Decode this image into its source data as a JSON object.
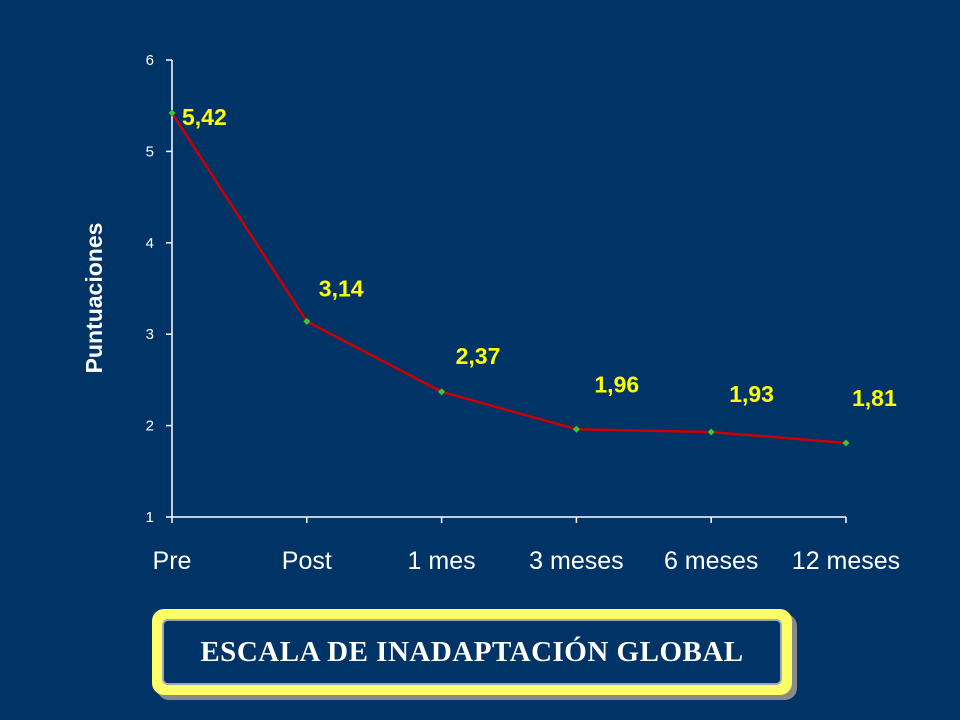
{
  "colors": {
    "background": "#003366",
    "line": "#cc0000",
    "marker": "#33cc33",
    "data_label": "#ffff00",
    "axis": "#ffffff",
    "title_frame": "#ffff66"
  },
  "chart_data": {
    "type": "line",
    "title": "ESCALA DE INADAPTACIÓN GLOBAL",
    "xlabel": "",
    "ylabel": "Puntuaciones",
    "categories": [
      "Pre",
      "Post",
      "1 mes",
      "3 meses",
      "6 meses",
      "12 meses"
    ],
    "values": [
      5.42,
      3.14,
      2.37,
      1.96,
      1.93,
      1.81
    ],
    "data_labels": [
      "5,42",
      "3,14",
      "2,37",
      "1,96",
      "1,93",
      "1,81"
    ],
    "ylim": [
      1,
      6
    ],
    "yticks": [
      "1",
      "2",
      "3",
      "4",
      "5",
      "6"
    ],
    "grid": false,
    "legend": "none"
  }
}
